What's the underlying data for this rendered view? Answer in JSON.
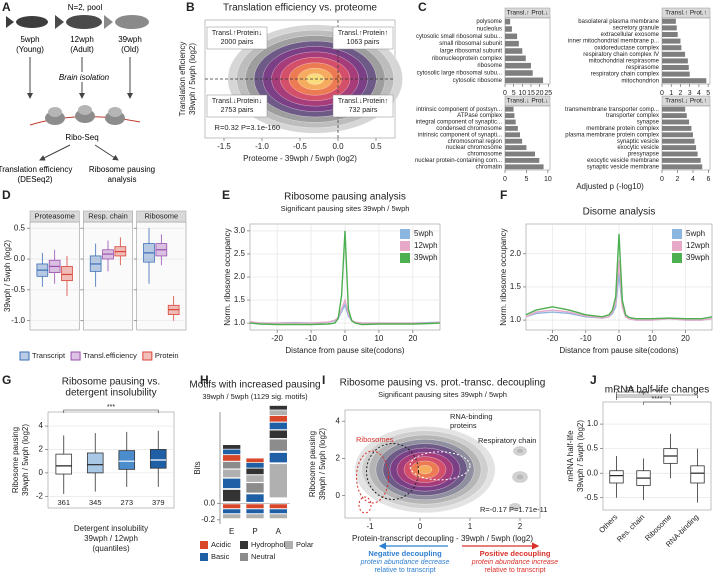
{
  "panel_labels": [
    "A",
    "B",
    "C",
    "D",
    "E",
    "F",
    "G",
    "H",
    "I",
    "J"
  ],
  "diagram": {
    "pool": "N=2, pool",
    "groups": [
      {
        "age": "5wph",
        "stage": "(Young)"
      },
      {
        "age": "12wph",
        "stage": "(Adult)"
      },
      {
        "age": "39wph",
        "stage": "(Old)"
      }
    ],
    "step": "Brain isolation",
    "method": "Ribo-Seq",
    "outputs": [
      [
        "Translation efficiency",
        "(DESeq2)"
      ],
      [
        "Ribosome pausing",
        "analysis"
      ]
    ]
  },
  "shared": {
    "c_xlabel": "Adjusted p (-log10)"
  },
  "chart_data": [
    {
      "type": "density",
      "title": "Translation efficiency vs. proteome",
      "xlabel": "Proteome - 39wph / 5wph (log2)",
      "ylabel": [
        "Translation efficiency",
        "39wph / 5wph (log2)"
      ],
      "xlim": [
        -1.75,
        0.75
      ],
      "xticks": [
        -1.5,
        {
          "value": -1,
          "label": "-1.0"
        },
        -0.5,
        {
          "value": 0,
          "label": "0.0"
        },
        0.5
      ],
      "ylim": [
        -1,
        1
      ],
      "hline": 0,
      "vline": 0,
      "quadrants": [
        {
          "label": "Transl.↑Protein↓",
          "pairs": "2000 pairs"
        },
        {
          "label": "Transl.↑Protein↑",
          "pairs": "1063 pairs"
        },
        {
          "label": "Transl.↓Protein↓",
          "pairs": "2753 pairs"
        },
        {
          "label": "Transl.↓Protein↑",
          "pairs": "732 pairs"
        }
      ],
      "annotations": [
        "R=0.32 P=3.1e-160"
      ]
    },
    {
      "type": "hbar",
      "title": "Transl.↑ Prot.↓",
      "color": "#7f7f7f",
      "xlim": [
        0,
        26
      ],
      "xticks": [
        0,
        5,
        10,
        15,
        20,
        25
      ],
      "categories": [
        "polysome",
        "nucleolus",
        "cytosolic small ribosomal subu...",
        "small ribosomal subunit",
        "large ribosomal subunit",
        "ribonucleoprotein complex",
        "ribosome",
        "cytosolic large ribosomal subu...",
        "cytosolic ribosome"
      ],
      "values": [
        3,
        4,
        7,
        8,
        10,
        12,
        15,
        16,
        22
      ]
    },
    {
      "type": "hbar",
      "title": "Transl.↑ Prot.↑",
      "color": "#7f7f7f",
      "xlim": [
        0,
        5.2
      ],
      "xticks": [
        0,
        1,
        2,
        3,
        4,
        5
      ],
      "categories": [
        "basolateral plasma membrane",
        "secretory granule",
        "extracellular exosome",
        "inner mitochondrial membrane p...",
        "oxidoreductase complex",
        "respiratory chain complex IV",
        "mitochondrial respirasome",
        "respirasome",
        "respiratory chain complex",
        "mitochondrion"
      ],
      "values": [
        1.5,
        1.6,
        1.7,
        2,
        2.1,
        2.5,
        2.8,
        2.9,
        3,
        4.8
      ]
    },
    {
      "type": "hbar",
      "title": "Transl.↓ Prot.↓",
      "color": "#7f7f7f",
      "xlim": [
        0,
        10.5
      ],
      "xticks": [
        0,
        5,
        10
      ],
      "categories": [
        "intrinsic component of postsyn...",
        "ATPase complex",
        "integral component of synaptic...",
        "condensed chromosome",
        "intrinsic component of synapti...",
        "chromosomal region",
        "nuclear chromosome",
        "chromosome",
        "nuclear protein-containing com...",
        "chromatin"
      ],
      "values": [
        2,
        2.2,
        2.5,
        3,
        3.5,
        4,
        5,
        7,
        8,
        9
      ]
    },
    {
      "type": "hbar",
      "title": "Transl.↓ Prot.↑",
      "color": "#7f7f7f",
      "xlim": [
        0,
        6.2
      ],
      "xticks": [
        0,
        2,
        4,
        6
      ],
      "categories": [
        "transmembrane transporter comp...",
        "transporter complex",
        "synapse",
        "membrane protein complex",
        "plasma membrane protein complex",
        "synaptic vesicle",
        "exocytic vesicle",
        "presynapse",
        "exocytic vesicle membrane",
        "synaptic vesicle membrane"
      ],
      "values": [
        3,
        3.2,
        3.5,
        3.8,
        4,
        4.2,
        4.4,
        4.6,
        5,
        5.2
      ]
    },
    {
      "type": "box",
      "ylabel": "39wph / 5wph (log2)",
      "categories": [
        "Proteasome",
        "Resp. chain",
        "Ribosome"
      ],
      "ylim": [
        -1.15,
        0.6
      ],
      "yticks": [
        {
          "value": -1,
          "label": "-1.0"
        },
        -0.5,
        {
          "value": 0,
          "label": "0.0"
        },
        0.5
      ],
      "grid": true,
      "series": [
        {
          "name": "Transcript",
          "color": "#3b6fb6",
          "low": [
            -0.45,
            -0.45,
            -0.4
          ],
          "q1": [
            -0.28,
            -0.2,
            -0.05
          ],
          "median": [
            -0.18,
            -0.08,
            0.1
          ],
          "q3": [
            -0.08,
            0.05,
            0.25
          ],
          "high": [
            0.1,
            0.25,
            0.5
          ]
        },
        {
          "name": "Transl.efficiency",
          "color": "#9b4fb0",
          "low": [
            -0.4,
            -0.2,
            -0.1
          ],
          "q1": [
            -0.22,
            0,
            0.05
          ],
          "median": [
            -0.12,
            0.08,
            0.15
          ],
          "q3": [
            -0.02,
            0.15,
            0.25
          ],
          "high": [
            0.15,
            0.3,
            0.4
          ]
        },
        {
          "name": "Protein",
          "color": "#d9453a",
          "low": [
            -0.6,
            -0.1,
            -1
          ],
          "q1": [
            -0.35,
            0.05,
            -0.9
          ],
          "median": [
            -0.25,
            0.12,
            -0.82
          ],
          "q3": [
            -0.12,
            0.2,
            -0.75
          ],
          "high": [
            0.05,
            0.35,
            -0.6
          ]
        }
      ]
    },
    {
      "type": "line",
      "title": "Ribosome pausing analysis",
      "subtitle": "Significant pausing sites 39wph / 5wph",
      "xlabel": "Distance from pause site(codons)",
      "ylabel": "Norm. ribosome occupancy",
      "x": [
        -28,
        -25,
        -20,
        -15,
        -10,
        -5,
        -3,
        -2,
        -1,
        0,
        1,
        2,
        3,
        5,
        10,
        15,
        20,
        25,
        28
      ],
      "xlim": [
        -28,
        28
      ],
      "xticks": [
        -20,
        -10,
        0,
        10,
        20
      ],
      "ylim": [
        0.85,
        3.15
      ],
      "yticks": [
        {
          "value": 1,
          "label": "1.0"
        },
        1.5,
        {
          "value": 2,
          "label": "2.0"
        },
        2.5,
        {
          "value": 3,
          "label": "3.0"
        }
      ],
      "grid": true,
      "legend": "top-right",
      "series": [
        {
          "name": "5wph",
          "color": "#8ab6e0",
          "values": [
            1.02,
            1,
            1,
            1.01,
            1,
            1.02,
            1.05,
            1.1,
            1.25,
            1.4,
            1.15,
            1.05,
            1.02,
            1,
            1,
            1,
            1,
            1.01,
            1.02
          ]
        },
        {
          "name": "12wph",
          "color": "#e8a8c8",
          "values": [
            1.03,
            1,
            1,
            1,
            1,
            1.02,
            1.06,
            1.12,
            1.3,
            1.5,
            1.2,
            1.06,
            1.02,
            1,
            1,
            1,
            1,
            1,
            1.02
          ]
        },
        {
          "name": "39wph",
          "color": "#4caf50",
          "values": [
            1,
            0.98,
            0.97,
            0.97,
            0.97,
            0.98,
            1,
            1.1,
            1.6,
            3,
            1.3,
            1.05,
            1,
            0.97,
            0.98,
            0.98,
            0.98,
            0.99,
            1
          ]
        }
      ]
    },
    {
      "type": "line",
      "title": "Disome analysis",
      "xlabel": "Distance from pause site(codons)",
      "ylabel": "Norm. ribosome occupancy",
      "x": [
        -28,
        -25,
        -20,
        -15,
        -10,
        -5,
        -3,
        -2,
        -1,
        0,
        1,
        2,
        3,
        5,
        10,
        15,
        20,
        25,
        28
      ],
      "xlim": [
        -28,
        28
      ],
      "xticks": [
        -20,
        -10,
        0,
        10,
        20
      ],
      "ylim": [
        0.85,
        2.45
      ],
      "yticks": [
        {
          "value": 1,
          "label": "1.0"
        },
        1.5,
        {
          "value": 2,
          "label": "2.0"
        }
      ],
      "grid": true,
      "legend": "top-right",
      "series": [
        {
          "name": "5wph",
          "color": "#8ab6e0",
          "values": [
            1.05,
            1.1,
            1.12,
            1.1,
            1.05,
            1.03,
            1.05,
            1.1,
            1.2,
            1.7,
            1.2,
            1.05,
            1.02,
            1,
            1,
            1.02,
            1,
            1,
            1.02
          ]
        },
        {
          "name": "12wph",
          "color": "#e8a8c8",
          "values": [
            1.05,
            1.12,
            1.15,
            1.12,
            1.06,
            1.03,
            1.05,
            1.12,
            1.25,
            1.9,
            1.2,
            1.05,
            1.02,
            1,
            1,
            1.02,
            1,
            1,
            1.02
          ]
        },
        {
          "name": "39wph",
          "color": "#4caf50",
          "values": [
            1.08,
            1.15,
            1.2,
            1.15,
            1.08,
            1.05,
            1.08,
            1.15,
            1.35,
            2.3,
            1.3,
            1.08,
            1.04,
            1.02,
            1.02,
            1.03,
            1.02,
            1.02,
            1.05
          ]
        }
      ]
    },
    {
      "type": "box",
      "title": [
        "Ribosome pausing vs.",
        "detergent insolubility"
      ],
      "ylabel": [
        "Ribosome pausing",
        "39wph / 5wph (log2)"
      ],
      "xlabel": [
        "Detergent insolubility",
        "39wph / 12wph",
        "(quantiles)"
      ],
      "categories": [
        null,
        null,
        null,
        null
      ],
      "counts": [
        361,
        345,
        273,
        379
      ],
      "colors": [
        "#ffffff",
        "#a8c8e6",
        "#4a8ccc",
        "#1f5fa6"
      ],
      "low": [
        -1.8,
        -1.6,
        -1.2,
        -1.2
      ],
      "q1": [
        -0.1,
        0,
        0.3,
        0.4
      ],
      "median": [
        0.6,
        0.7,
        1,
        1.1
      ],
      "q3": [
        1.6,
        1.7,
        1.9,
        2
      ],
      "high": [
        3.2,
        3.4,
        3.5,
        3.6
      ],
      "ylim": [
        -3,
        5.2
      ],
      "yticks": [
        -2,
        0,
        2,
        4
      ],
      "grid": true,
      "significance": [
        "***"
      ]
    },
    {
      "type": "logo",
      "title": "Motifs with increased pausing",
      "subtitle": "39wph / 5wph (1129 sig. motifs)",
      "ylabel": "Bits",
      "categories": [
        "E",
        "P",
        "A"
      ],
      "ylim": [
        -0.25,
        1.1
      ],
      "yticks": [
        -0.2,
        {
          "value": 0,
          "label": "0.0"
        }
      ],
      "groups": [
        {
          "name": "Acidic",
          "color": "#d9472b"
        },
        {
          "name": "Hydrophobic",
          "color": "#333333"
        },
        {
          "name": "Polar",
          "color": "#b0b0b0"
        },
        {
          "name": "Basic",
          "color": "#1f5fa6"
        },
        {
          "name": "Neutral",
          "color": "#8c8c8c"
        }
      ]
    },
    {
      "type": "density",
      "title": "Ribosome pausing vs. prot.-transc. decoupling",
      "subtitle": "Significant pausing sites 39wph / 5wph",
      "xlabel": "Protein-transcript decoupling - 39wph / 5wph (log2)",
      "ylabel": [
        "Ribosome pausing",
        "39wph / 5wph (log2)"
      ],
      "xlim": [
        -1.5,
        2.4
      ],
      "xticks": [
        -1,
        0,
        1,
        2
      ],
      "ylim": [
        -1.2,
        4.6
      ],
      "yticks": [
        0,
        2,
        4
      ],
      "annotations": [
        "Ribosomes",
        "RNA-binding",
        "proteins",
        "Respiratory chain",
        "R=-0.17 P=1.71e-11"
      ],
      "notes": {
        "negative": [
          "Negative decoupling",
          "protein abundance decrease",
          "relative to transcript"
        ],
        "positive": [
          "Positive decoupling",
          "protein abundance increase",
          "relative to transcript"
        ]
      }
    },
    {
      "type": "box",
      "title": "mRNA half-life changes",
      "ylabel": [
        "mRNA half-life",
        "39wph / 5wph (log2)"
      ],
      "categories": [
        "Others",
        "Res. chain",
        "Ribosome",
        "RNA-binding"
      ],
      "colors": [
        "#ffffff",
        "#ffffff",
        "#ffffff",
        "#ffffff"
      ],
      "low": [
        -0.5,
        -0.55,
        -0.1,
        -0.6
      ],
      "q1": [
        -0.2,
        -0.25,
        0.2,
        -0.2
      ],
      "median": [
        -0.05,
        -0.1,
        0.35,
        0
      ],
      "q3": [
        0.05,
        0.05,
        0.5,
        0.15
      ],
      "high": [
        0.35,
        0.3,
        0.8,
        0.5
      ],
      "ylim": [
        -0.75,
        1.45
      ],
      "yticks": [
        -0.5,
        {
          "value": 0,
          "label": "0.0"
        },
        0.5,
        {
          "value": 1,
          "label": "1.0"
        }
      ],
      "grid": true,
      "significance": [
        "ns",
        "****",
        "****",
        "****"
      ]
    }
  ]
}
